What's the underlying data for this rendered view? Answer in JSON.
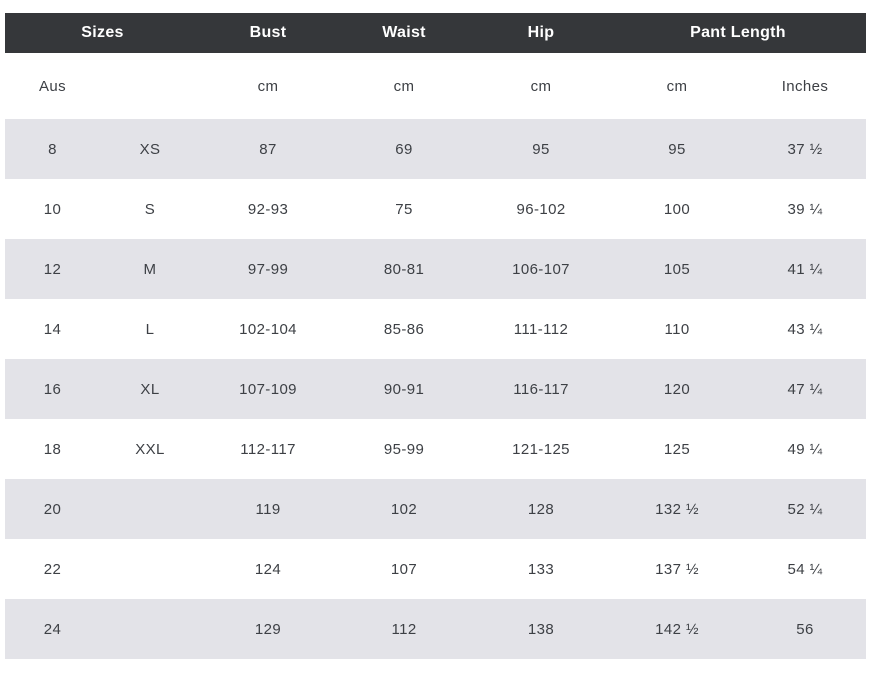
{
  "colors": {
    "header_bg": "#35373a",
    "header_text": "#ffffff",
    "row_bg": "#ffffff",
    "row_alt_bg": "#e3e3e8",
    "text": "#3d4045"
  },
  "chart_data": {
    "type": "table",
    "header_groups": [
      {
        "label": "Sizes",
        "span": 2
      },
      {
        "label": "Bust",
        "span": 1
      },
      {
        "label": "Waist",
        "span": 1
      },
      {
        "label": "Hip",
        "span": 1
      },
      {
        "label": "Pant Length",
        "span": 2
      }
    ],
    "units_row": [
      "Aus",
      "",
      "cm",
      "cm",
      "cm",
      "cm",
      "Inches"
    ],
    "rows": [
      [
        "8",
        "XS",
        "87",
        "69",
        "95",
        "95",
        "37 ½"
      ],
      [
        "10",
        "S",
        "92-93",
        "75",
        "96-102",
        "100",
        "39 ¼"
      ],
      [
        "12",
        "M",
        "97-99",
        "80-81",
        "106-107",
        "105",
        "41 ¼"
      ],
      [
        "14",
        "L",
        "102-104",
        "85-86",
        "111-112",
        "110",
        "43 ¼"
      ],
      [
        "16",
        "XL",
        "107-109",
        "90-91",
        "116-117",
        "120",
        "47 ¼"
      ],
      [
        "18",
        "XXL",
        "112-117",
        "95-99",
        "121-125",
        "125",
        "49 ¼"
      ],
      [
        "20",
        "",
        "119",
        "102",
        "128",
        "132 ½",
        "52 ¼"
      ],
      [
        "22",
        "",
        "124",
        "107",
        "133",
        "137 ½",
        "54 ¼"
      ],
      [
        "24",
        "",
        "129",
        "112",
        "138",
        "142 ½",
        "56"
      ]
    ],
    "layout_hints": {
      "striped": true,
      "first_data_row_shaded": true,
      "grid": false
    }
  }
}
